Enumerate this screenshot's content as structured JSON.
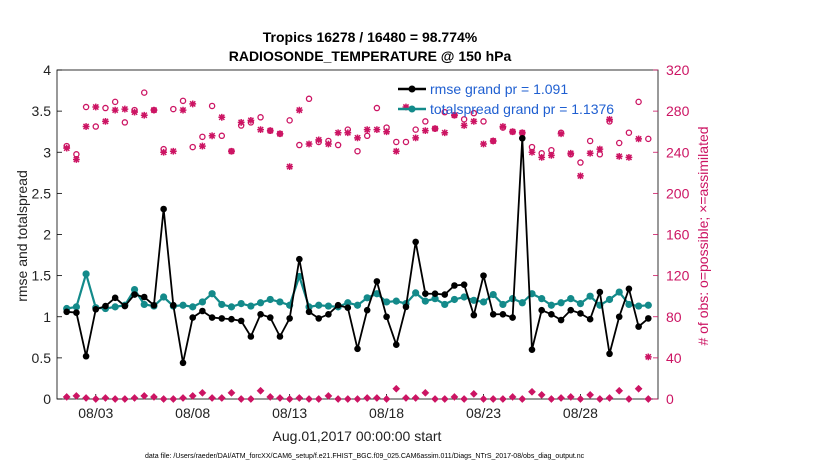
{
  "chart_data": {
    "type": "line",
    "title": "Tropics 16278 / 16480 = 98.774%",
    "subtitle": "RADIOSONDE_TEMPERATURE @ 150 hPa",
    "xlabel": "Aug.01,2017 00:00:00 start",
    "ylabel_left": "rmse and totalspread",
    "ylabel_right": "# of obs: o=possible; ×=assimilated",
    "footnote": "data file: /Users/raeder/DAI/ATM_forcXX/CAM6_setup/f.e21.FHIST_BGC.f09_025.CAM6assim.011/Diags_NTrS_2017-08/obs_diag_output.nc",
    "xlim": [
      1.0,
      32.0
    ],
    "ylim_left": [
      0,
      4
    ],
    "ylim_right": [
      0,
      320
    ],
    "x_tick_values": [
      3,
      8,
      13,
      18,
      23,
      28
    ],
    "x_tick_labels": [
      "08/03",
      "08/08",
      "08/13",
      "08/18",
      "08/23",
      "08/28"
    ],
    "y_left_ticks": [
      "0",
      "0.5",
      "1",
      "1.5",
      "2",
      "2.5",
      "3",
      "3.5",
      "4"
    ],
    "y_right_ticks": [
      "0",
      "40",
      "80",
      "120",
      "160",
      "200",
      "240",
      "280",
      "320"
    ],
    "legend": [
      {
        "label": "rmse grand pr = 1.091",
        "color": "#000000"
      },
      {
        "label": "totalspread grand pr = 1.1376",
        "color": "#138a8a"
      }
    ],
    "colors": {
      "rmse": "#000000",
      "spread": "#138a8a",
      "obs": "#cc1463"
    },
    "x": [
      1.5,
      2.0,
      2.5,
      3.0,
      3.5,
      4.0,
      4.5,
      5.0,
      5.5,
      6.0,
      6.5,
      7.0,
      7.5,
      8.0,
      8.5,
      9.0,
      9.5,
      10.0,
      10.5,
      11.0,
      11.5,
      12.0,
      12.5,
      13.0,
      13.5,
      14.0,
      14.5,
      15.0,
      15.5,
      16.0,
      16.5,
      17.0,
      17.5,
      18.0,
      18.5,
      19.0,
      19.5,
      20.0,
      20.5,
      21.0,
      21.5,
      22.0,
      22.5,
      23.0,
      23.5,
      24.0,
      24.5,
      25.0,
      25.5,
      26.0,
      26.5,
      27.0,
      27.5,
      28.0,
      28.5,
      29.0,
      29.5,
      30.0,
      30.5,
      31.0,
      31.5
    ],
    "series": [
      {
        "name": "rmse",
        "values": [
          1.06,
          1.05,
          0.52,
          1.09,
          1.13,
          1.23,
          1.13,
          1.27,
          1.24,
          1.14,
          2.31,
          1.14,
          0.44,
          0.99,
          1.07,
          0.99,
          0.98,
          0.97,
          0.95,
          0.76,
          1.03,
          0.99,
          0.76,
          0.98,
          1.7,
          1.06,
          0.98,
          1.03,
          1.14,
          1.11,
          0.61,
          1.08,
          1.43,
          1.0,
          0.66,
          1.12,
          1.91,
          1.28,
          1.28,
          1.27,
          1.38,
          1.39,
          1.02,
          1.5,
          1.03,
          1.03,
          0.99,
          3.17,
          0.6,
          1.08,
          1.03,
          0.96,
          1.08,
          1.04,
          0.97,
          1.3,
          0.55,
          1.0,
          1.34,
          0.88,
          0.98
        ]
      },
      {
        "name": "totalspread",
        "values": [
          1.1,
          1.12,
          1.52,
          1.11,
          1.1,
          1.12,
          1.14,
          1.33,
          1.15,
          1.13,
          1.24,
          1.13,
          1.14,
          1.12,
          1.18,
          1.28,
          1.15,
          1.12,
          1.16,
          1.13,
          1.17,
          1.21,
          1.18,
          1.14,
          1.49,
          1.12,
          1.14,
          1.13,
          1.12,
          1.17,
          1.14,
          1.23,
          1.28,
          1.18,
          1.19,
          1.16,
          1.29,
          1.19,
          1.22,
          1.15,
          1.21,
          1.24,
          1.2,
          1.18,
          1.27,
          1.15,
          1.22,
          1.17,
          1.28,
          1.22,
          1.14,
          1.17,
          1.22,
          1.16,
          1.25,
          1.14,
          1.21,
          1.3,
          1.15,
          1.13,
          1.14
        ]
      },
      {
        "name": "obs_possible",
        "values": [
          246,
          238,
          284,
          265,
          283,
          289,
          269,
          281,
          298,
          281,
          243,
          282,
          290,
          245,
          255,
          285,
          256,
          241,
          266,
          269,
          274,
          261,
          258,
          271,
          247,
          292,
          250,
          251,
          247,
          262,
          241,
          256,
          283,
          264,
          250,
          250,
          262,
          270,
          263,
          279,
          276,
          272,
          278,
          270,
          251,
          264,
          260,
          259,
          245,
          239,
          242,
          259,
          238,
          230,
          251,
          238,
          270,
          249,
          259,
          289,
          253
        ]
      },
      {
        "name": "obs_assimilated",
        "values": [
          244,
          233,
          265,
          284,
          270,
          281,
          282,
          279,
          276,
          281,
          240,
          241,
          281,
          287,
          246,
          256,
          274,
          241,
          269,
          271,
          262,
          261,
          258,
          226,
          281,
          248,
          252,
          248,
          259,
          259,
          254,
          262,
          262,
          260,
          241,
          284,
          254,
          261,
          263,
          259,
          276,
          266,
          270,
          248,
          251,
          265,
          260,
          259,
          240,
          235,
          237,
          258,
          239,
          217,
          239,
          243,
          272,
          236,
          235,
          253,
          41
        ]
      },
      {
        "name": "obs_rejected",
        "values": [
          2,
          3,
          1,
          0,
          1,
          0,
          0,
          1,
          3,
          2,
          0,
          0,
          1,
          3,
          6,
          1,
          1,
          6,
          0,
          0,
          8,
          2,
          1,
          0,
          1,
          0,
          0,
          3,
          0,
          0,
          0,
          1,
          1,
          0,
          10,
          1,
          1,
          6,
          0,
          0,
          2,
          0,
          5,
          0,
          0,
          0,
          2,
          0,
          7,
          4,
          0,
          1,
          2,
          0,
          4,
          0,
          1,
          8,
          0,
          10,
          0
        ]
      }
    ]
  }
}
